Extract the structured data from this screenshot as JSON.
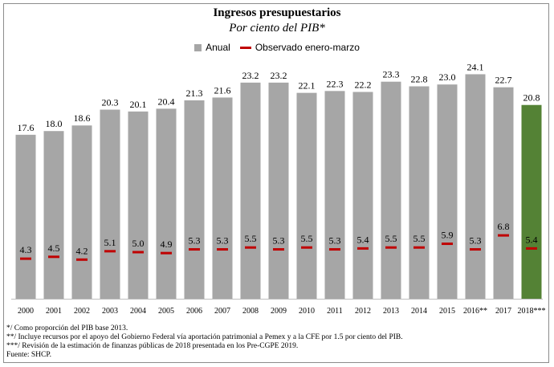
{
  "chart_data": {
    "type": "bar",
    "title": "Ingresos presupuestarios",
    "subtitle": "Por ciento del PIB*",
    "categories": [
      "2000",
      "2001",
      "2002",
      "2003",
      "2004",
      "2005",
      "2006",
      "2007",
      "2008",
      "2009",
      "2010",
      "2011",
      "2012",
      "2013",
      "2014",
      "2015",
      "2016**",
      "2017",
      "2018***"
    ],
    "series": [
      {
        "name": "Anual",
        "values": [
          17.6,
          18.0,
          18.6,
          20.3,
          20.1,
          20.4,
          21.3,
          21.6,
          23.2,
          23.2,
          22.1,
          22.3,
          22.2,
          23.3,
          22.8,
          23.0,
          24.1,
          22.7,
          20.8
        ],
        "color": "#a6a6a6",
        "highlight_color": "#548235",
        "highlight_index": 18
      },
      {
        "name": "Observado enero-marzo",
        "values": [
          4.3,
          4.5,
          4.2,
          5.1,
          5.0,
          4.9,
          5.3,
          5.3,
          5.5,
          5.3,
          5.5,
          5.3,
          5.4,
          5.5,
          5.5,
          5.9,
          5.3,
          6.8,
          5.4
        ],
        "color": "#c00000"
      }
    ],
    "ylim": [
      0,
      25
    ],
    "grid": false,
    "legend_position": "top-center"
  },
  "notes": [
    "*/ Como proporción del PIB base 2013.",
    "**/ Incluye recursos por el apoyo del Gobierno Federal vía aportación patrimonial a Pemex y a la CFE por 1.5 por ciento del PIB.",
    "***/ Revisión de la estimación de finanzas públicas de 2018 presentada en los Pre-CGPE 2019.",
    "Fuente: SHCP."
  ]
}
